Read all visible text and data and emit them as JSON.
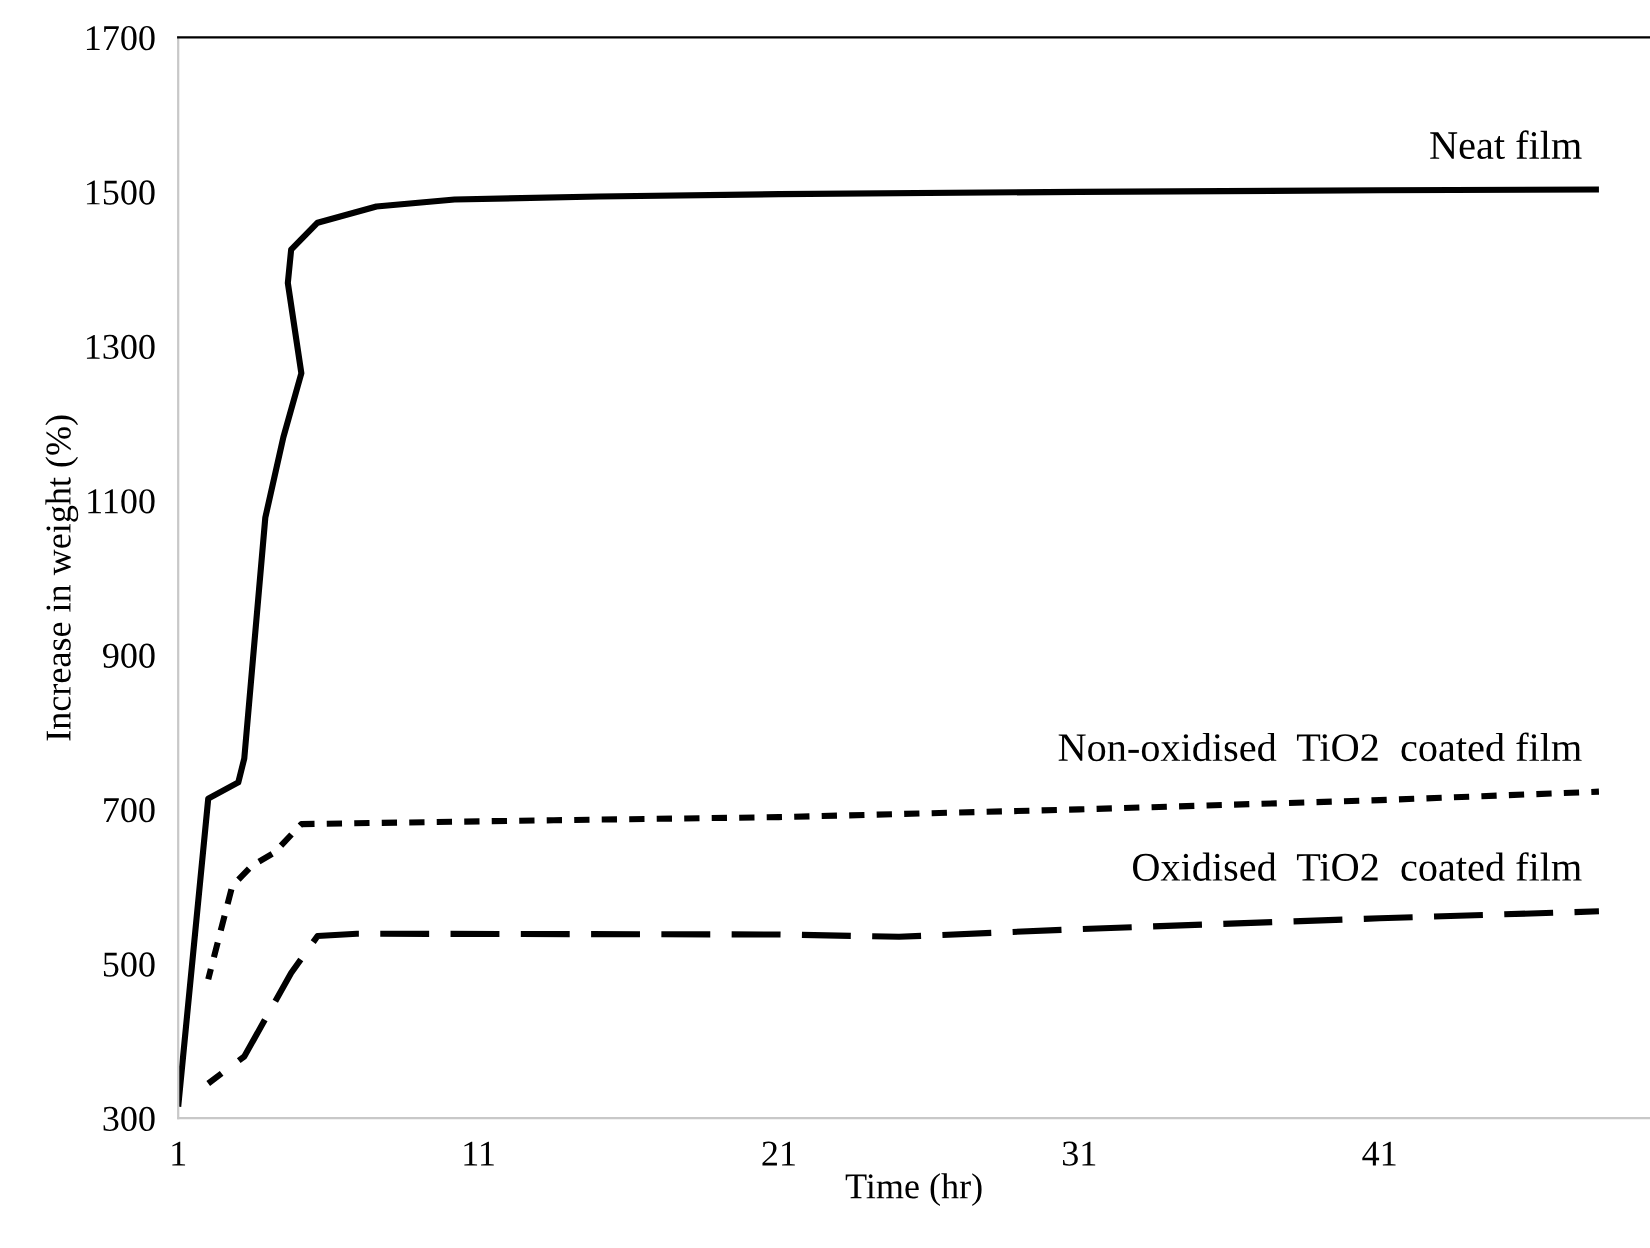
{
  "chart_data": {
    "type": "line",
    "xlabel": "Time (hr)",
    "ylabel": "Increase in weight (%)",
    "xlim": [
      1,
      50
    ],
    "ylim": [
      300,
      1700
    ],
    "xticks": [
      1,
      11,
      21,
      31,
      41
    ],
    "yticks": [
      300,
      500,
      700,
      900,
      1100,
      1300,
      1500,
      1700
    ],
    "grid": false,
    "legend": false,
    "marker": "none",
    "series": [
      {
        "name": "Neat film",
        "color": "#000000",
        "line_style": "solid",
        "x": [
          1,
          2.0,
          3.0,
          3.2,
          3.9,
          4.5,
          5.1,
          4.65,
          4.76,
          5.64,
          7.6,
          10.2,
          15,
          21,
          31,
          41,
          48.3
        ],
        "values": [
          315,
          714,
          735,
          766,
          1078,
          1182,
          1265,
          1382,
          1425,
          1460,
          1481,
          1490,
          1494,
          1497,
          1500,
          1502,
          1503
        ]
      },
      {
        "name": "Non-oxidised  TiO2  coated film",
        "color": "#000000",
        "line_style": "dotted",
        "x": [
          2.0,
          2.8,
          3.45,
          4.2,
          5.1,
          13.5,
          21,
          31,
          41,
          48.3
        ],
        "values": [
          480,
          601,
          627,
          644,
          681,
          686,
          690,
          700,
          712,
          723
        ]
      },
      {
        "name": "Oxidised  TiO2  coated film",
        "color": "#000000",
        "line_style": "dashed",
        "x": [
          2.0,
          3.2,
          4.76,
          5.64,
          6.95,
          21,
          25,
          31,
          41,
          48.3
        ],
        "values": [
          345,
          380,
          488,
          536,
          539,
          538,
          535,
          545,
          559,
          568
        ]
      }
    ]
  }
}
